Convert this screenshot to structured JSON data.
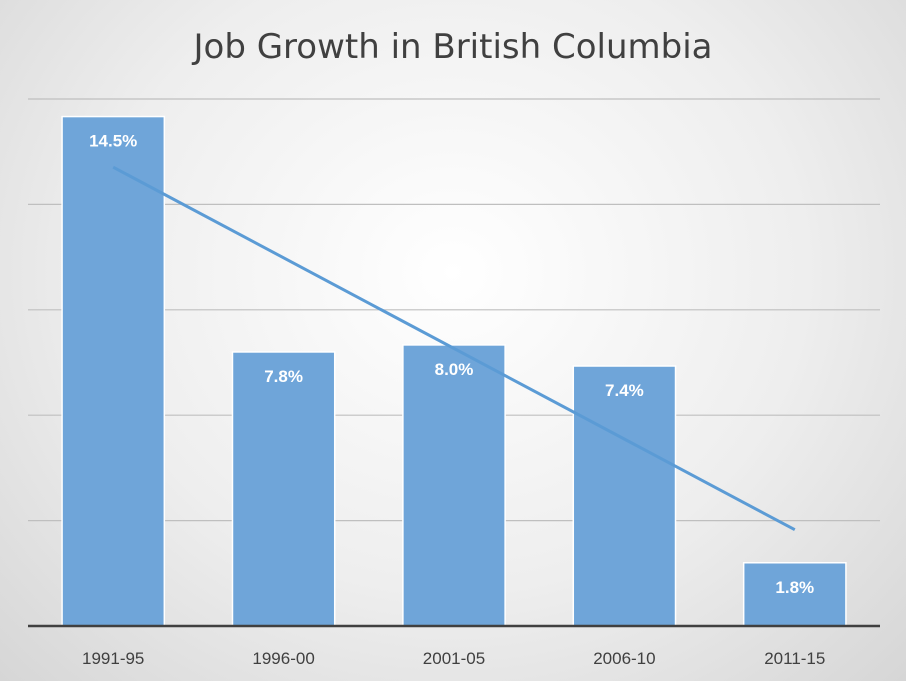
{
  "chart_data": {
    "type": "bar",
    "title": "Job Growth in British Columbia",
    "xlabel": "",
    "ylabel": "",
    "categories": [
      "1991-95",
      "1996-00",
      "2001-05",
      "2006-10",
      "2011-15"
    ],
    "series": [
      {
        "values": [
          14.5,
          7.8,
          8.0,
          7.4,
          1.8
        ],
        "labels": [
          "14.5%",
          "7.8%",
          "8.0%",
          "7.4%",
          "1.8%"
        ]
      }
    ],
    "trendline": {
      "type": "linear"
    },
    "ylim": [
      0,
      15
    ],
    "y_gridlines": [
      3,
      6,
      9,
      12,
      15
    ],
    "y_tick_labels_shown": false,
    "grid": true,
    "legend": "none",
    "colors": {
      "bar": "#6fa5d9",
      "trendline": "#5b9bd5",
      "data_label": "#ffffff",
      "gridline": "#bfbfbf",
      "axis": "#404040",
      "title": "#404040",
      "tick_label": "#404040"
    }
  }
}
